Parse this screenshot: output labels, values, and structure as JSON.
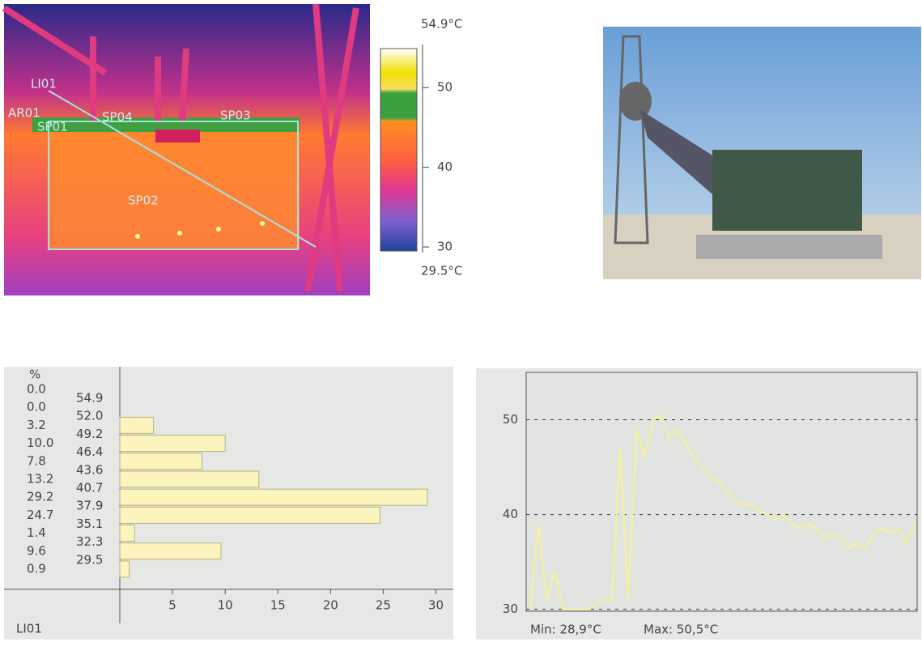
{
  "thermal_image": {
    "annotations": [
      "LI01",
      "AR01",
      "SP01",
      "SP04",
      "SP03",
      "SP02"
    ],
    "scale": {
      "max_label": "54.9°C",
      "min_label": "29.5°C",
      "ylim": [
        29.5,
        54.9
      ],
      "yticks": [
        30,
        40,
        50
      ]
    }
  },
  "chart_data": [
    {
      "type": "bar",
      "horizontal": true,
      "y_label": "%",
      "footer": "LI01",
      "bin_labels": [
        "54.9",
        "52.0",
        "49.2",
        "46.4",
        "43.6",
        "40.7",
        "37.9",
        "35.1",
        "32.3",
        "29.5"
      ],
      "values": [
        0,
        0,
        3.2,
        10,
        7.8,
        13.2,
        29.2,
        24.7,
        1.4,
        9.6,
        0.9
      ],
      "value_labels": [
        "0.0",
        "0.0",
        "3.2",
        "10.0",
        "7.8",
        "13.2",
        "29.2",
        "24.7",
        "1.4",
        "9.6",
        "0.9"
      ],
      "color": "#fbf5bd",
      "xlim": [
        0,
        31.5
      ],
      "xticks": [
        5,
        10,
        15,
        20,
        25,
        30
      ]
    },
    {
      "type": "line",
      "color": "#f4efa2",
      "values": [
        30,
        39,
        31,
        34,
        30,
        30,
        30,
        30,
        30.5,
        31,
        31,
        47,
        31,
        49,
        46,
        50,
        50.5,
        48,
        49,
        47.5,
        46,
        45,
        44,
        43.5,
        42.5,
        41.5,
        41,
        41,
        40.5,
        40,
        39.5,
        40,
        39,
        38.5,
        39,
        38.5,
        37.5,
        38,
        37.5,
        36.5,
        37,
        36.5,
        38,
        38.5,
        38,
        38.5,
        37,
        39
      ],
      "ylim": [
        29.8,
        55
      ],
      "yticks": [
        30,
        40,
        50
      ],
      "grid": true,
      "min_label": "Min: 28,9°C",
      "max_label": "Max: 50,5°C"
    }
  ]
}
